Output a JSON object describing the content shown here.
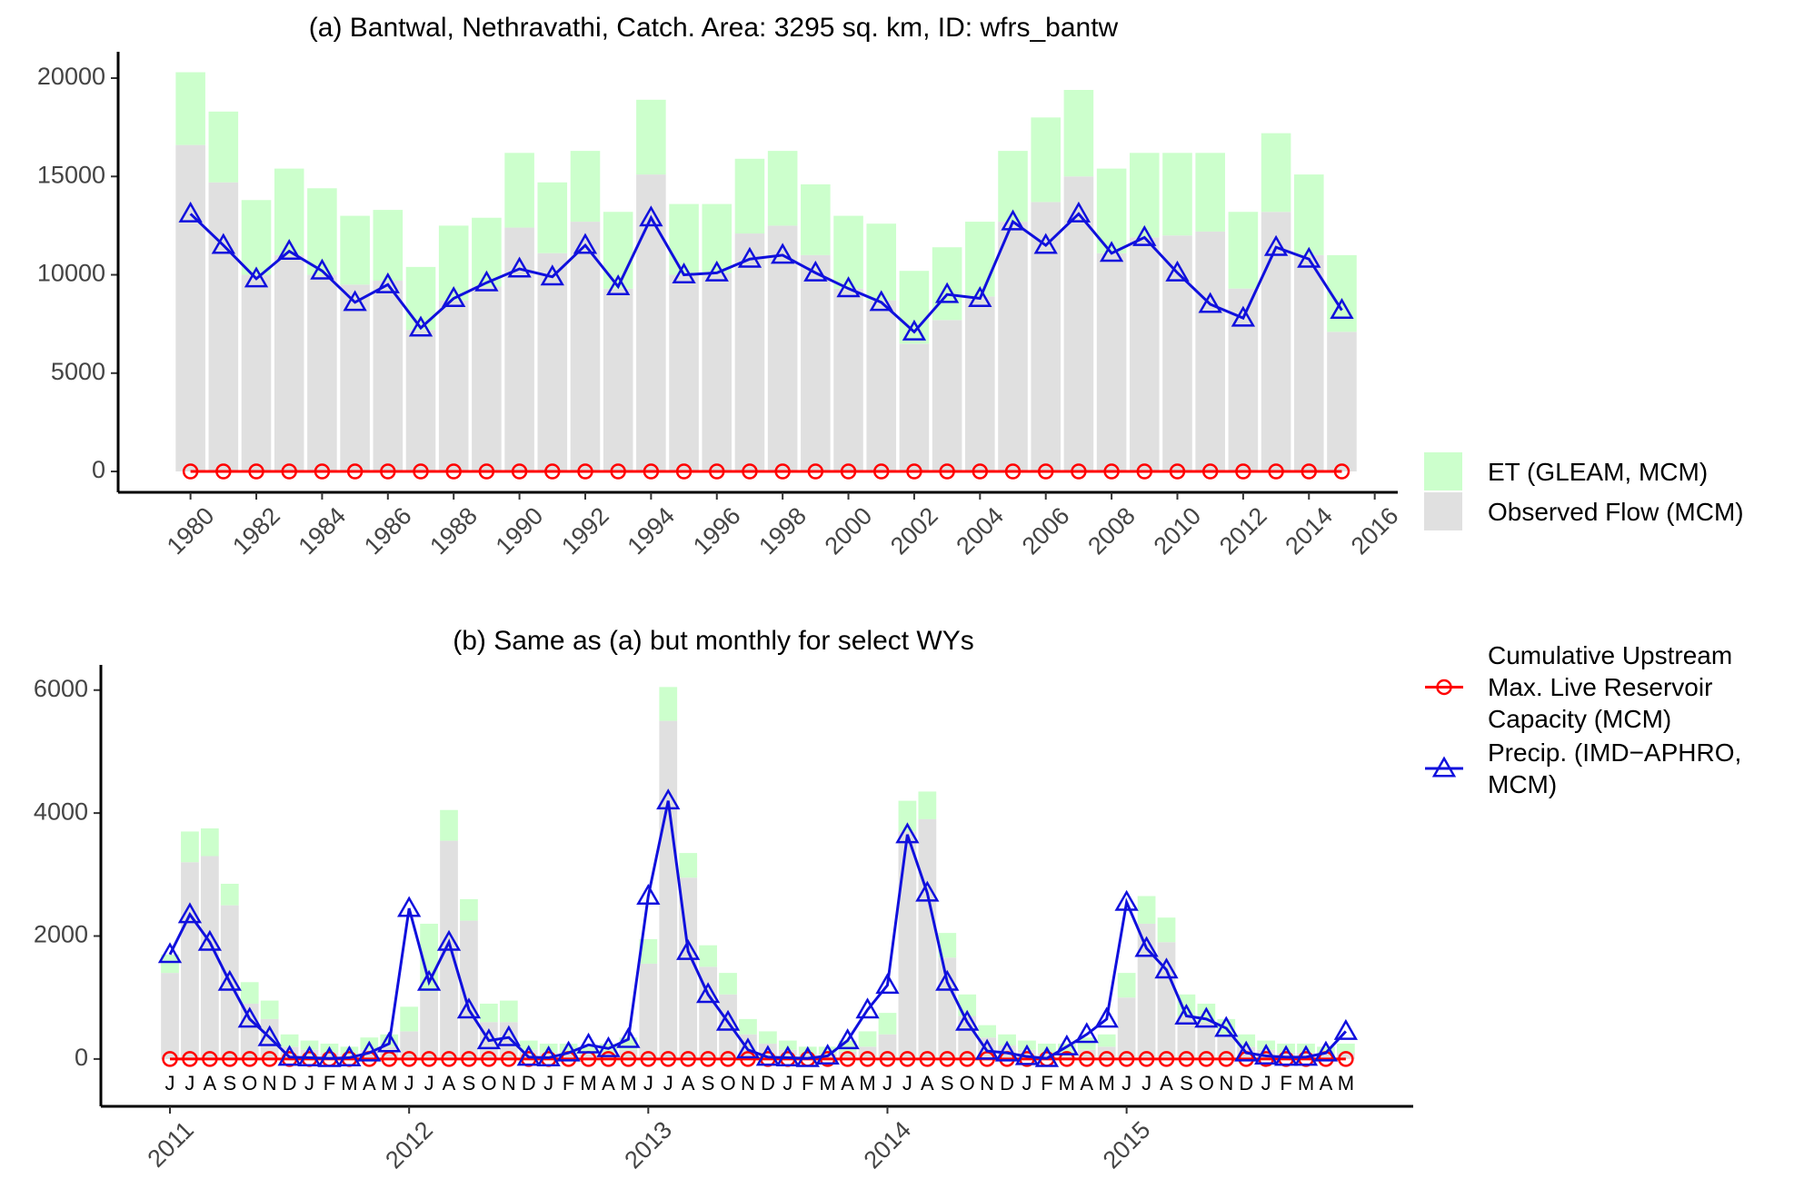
{
  "chart_data": [
    {
      "type": "bar",
      "title": "(a) Bantwal, Nethravathi, Catch. Area: 3295 sq. km, ID: wfrs_bantw",
      "x": [
        1980,
        1981,
        1982,
        1983,
        1984,
        1985,
        1986,
        1987,
        1988,
        1989,
        1990,
        1991,
        1992,
        1993,
        1994,
        1995,
        1996,
        1997,
        1998,
        1999,
        2000,
        2001,
        2002,
        2003,
        2004,
        2005,
        2006,
        2007,
        2008,
        2009,
        2010,
        2011,
        2012,
        2013,
        2014,
        2015
      ],
      "xlim": [
        1977.8,
        2016.7
      ],
      "xticks": [
        1980,
        1982,
        1984,
        1986,
        1988,
        1990,
        1992,
        1994,
        1996,
        1998,
        2000,
        2002,
        2004,
        2006,
        2008,
        2010,
        2012,
        2014,
        2016
      ],
      "ylim": [
        -1060,
        21340
      ],
      "yticks": [
        0,
        5000,
        10000,
        15000,
        20000
      ],
      "series": [
        {
          "name": "Observed Flow (MCM)",
          "type": "bar",
          "color": "#e0e0e0",
          "values": [
            16600,
            14700,
            10000,
            11000,
            10000,
            9500,
            9700,
            7200,
            8700,
            9400,
            12400,
            11100,
            12700,
            9300,
            15100,
            10000,
            10100,
            12100,
            12500,
            11000,
            9300,
            8700,
            6500,
            7700,
            8900,
            12700,
            13700,
            15000,
            11100,
            11900,
            12000,
            12200,
            9300,
            13200,
            11000,
            7100
          ]
        },
        {
          "name": "ET (GLEAM, MCM)",
          "type": "bar",
          "color": "#ccffcc",
          "values": [
            3700,
            3600,
            3800,
            4400,
            4400,
            3500,
            3600,
            3200,
            3800,
            3500,
            3800,
            3600,
            3600,
            3900,
            3800,
            3600,
            3500,
            3800,
            3800,
            3600,
            3700,
            3900,
            3700,
            3700,
            3800,
            3600,
            4300,
            4400,
            4300,
            4300,
            4200,
            4000,
            3900,
            4000,
            4100,
            3900
          ]
        },
        {
          "type": "line",
          "marker": "circle",
          "color": "#ff0000",
          "values": [
            0,
            0,
            0,
            0,
            0,
            0,
            0,
            0,
            0,
            0,
            0,
            0,
            0,
            0,
            0,
            0,
            0,
            0,
            0,
            0,
            0,
            0,
            0,
            0,
            0,
            0,
            0,
            0,
            0,
            0,
            0,
            0,
            0,
            0,
            0,
            0
          ]
        },
        {
          "type": "line",
          "marker": "triangle",
          "color": "#1010dd",
          "values": [
            13100,
            11500,
            9800,
            11200,
            10200,
            8600,
            9500,
            7300,
            8800,
            9600,
            10300,
            9900,
            11500,
            9400,
            12900,
            10000,
            10100,
            10800,
            11000,
            10100,
            9300,
            8600,
            7100,
            9000,
            8800,
            12700,
            11500,
            13100,
            11100,
            11900,
            10100,
            8500,
            7800,
            11400,
            10800,
            8200
          ]
        }
      ]
    },
    {
      "type": "bar",
      "title": "(b) Same as (a) but monthly for select WYs",
      "categories": [
        "J",
        "J",
        "A",
        "S",
        "O",
        "N",
        "D",
        "J",
        "F",
        "M",
        "A",
        "M",
        "J",
        "J",
        "A",
        "S",
        "O",
        "N",
        "D",
        "J",
        "F",
        "M",
        "A",
        "M",
        "J",
        "J",
        "A",
        "S",
        "O",
        "N",
        "D",
        "J",
        "F",
        "M",
        "A",
        "M",
        "J",
        "J",
        "A",
        "S",
        "O",
        "N",
        "D",
        "J",
        "F",
        "M",
        "A",
        "M",
        "J",
        "J",
        "A",
        "S",
        "O",
        "N",
        "D",
        "J",
        "F",
        "M",
        "A",
        "M"
      ],
      "xticks": [
        2011,
        2012,
        2013,
        2014,
        2015
      ],
      "ylim": [
        -770,
        6410
      ],
      "yticks": [
        0,
        2000,
        4000,
        6000
      ],
      "series": [
        {
          "type": "bar",
          "color": "#e0e0e0",
          "values": [
            1400,
            3200,
            3300,
            2500,
            900,
            650,
            200,
            150,
            100,
            80,
            150,
            200,
            450,
            1100,
            3550,
            2250,
            600,
            600,
            150,
            100,
            80,
            80,
            100,
            150,
            1550,
            5500,
            2950,
            1500,
            1050,
            400,
            250,
            150,
            80,
            80,
            120,
            200,
            400,
            3700,
            3900,
            1650,
            700,
            350,
            220,
            150,
            100,
            100,
            150,
            200,
            1000,
            2200,
            1900,
            700,
            600,
            400,
            200,
            150,
            100,
            100,
            80,
            100
          ]
        },
        {
          "type": "bar",
          "color": "#ccffcc",
          "values": [
            300,
            500,
            450,
            350,
            350,
            300,
            200,
            150,
            150,
            120,
            200,
            200,
            400,
            1100,
            500,
            350,
            300,
            350,
            150,
            150,
            170,
            120,
            150,
            200,
            400,
            550,
            400,
            350,
            350,
            250,
            200,
            150,
            120,
            120,
            180,
            250,
            350,
            500,
            450,
            400,
            350,
            200,
            180,
            150,
            150,
            150,
            200,
            200,
            400,
            450,
            400,
            350,
            300,
            250,
            200,
            150,
            150,
            150,
            120,
            150
          ]
        },
        {
          "name": "Cumulative Upstream Max. Live Reservoir Capacity (MCM)",
          "type": "line",
          "marker": "circle",
          "color": "#ff0000",
          "values": [
            0,
            0,
            0,
            0,
            0,
            0,
            0,
            0,
            0,
            0,
            0,
            0,
            0,
            0,
            0,
            0,
            0,
            0,
            0,
            0,
            0,
            0,
            0,
            0,
            0,
            0,
            0,
            0,
            0,
            0,
            0,
            0,
            0,
            0,
            0,
            0,
            0,
            0,
            0,
            0,
            0,
            0,
            0,
            0,
            0,
            0,
            0,
            0,
            0,
            0,
            0,
            0,
            0,
            0,
            0,
            0,
            0,
            0,
            0,
            0
          ]
        },
        {
          "name": "Precip. (IMD−APHRO, MCM)",
          "type": "line",
          "marker": "triangle",
          "color": "#1010dd",
          "values": [
            1700,
            2350,
            1900,
            1250,
            650,
            350,
            30,
            20,
            10,
            20,
            100,
            250,
            2450,
            1250,
            1900,
            800,
            300,
            350,
            30,
            20,
            100,
            230,
            170,
            320,
            2650,
            4200,
            1750,
            1050,
            600,
            150,
            30,
            20,
            10,
            50,
            300,
            800,
            1200,
            3650,
            2700,
            1250,
            600,
            130,
            100,
            40,
            10,
            200,
            400,
            650,
            2550,
            1800,
            1450,
            700,
            650,
            500,
            100,
            50,
            30,
            30,
            100,
            450
          ]
        }
      ]
    }
  ]
}
